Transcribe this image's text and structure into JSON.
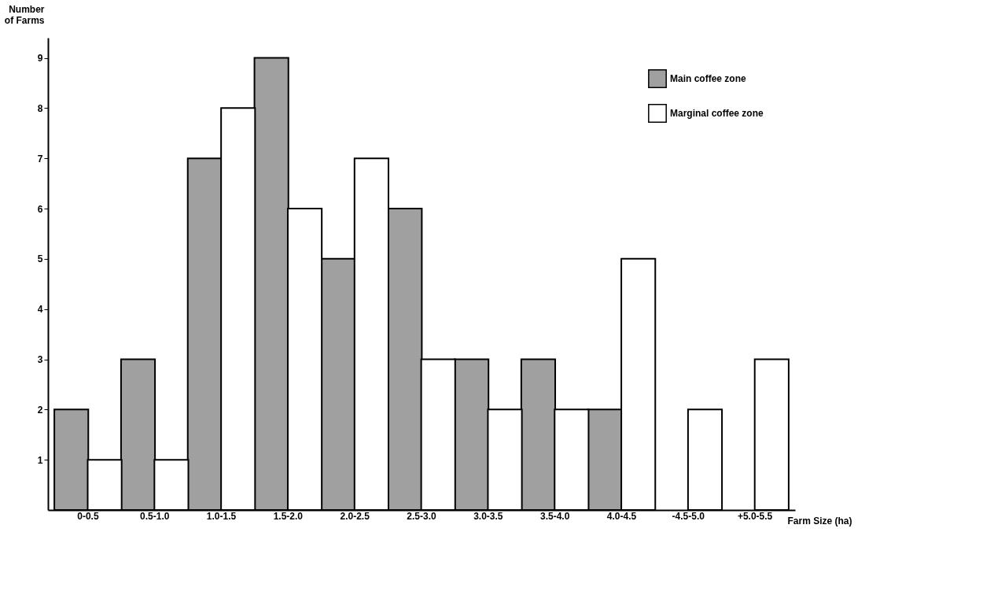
{
  "chart_data": {
    "type": "bar",
    "xlabel": "Farm Size (ha)",
    "ylabel": "Number of Farms",
    "categories": [
      "0-0.5",
      "0.5-1.0",
      "1.0-1.5",
      "1.5-2.0",
      "2.0-2.5",
      "2.5-3.0",
      "3.0-3.5",
      "3.5-4.0",
      "4.0-4.5",
      "-4.5-5.0",
      "+5.0-5.5"
    ],
    "series": [
      {
        "name": "Main coffee zone",
        "color": "#a0a0a0",
        "values": [
          2,
          3,
          7,
          9,
          5,
          6,
          3,
          3,
          2,
          null,
          null
        ]
      },
      {
        "name": "Marginal coffee zone",
        "color": "#ffffff",
        "values": [
          1,
          1,
          8,
          6,
          7,
          3,
          2,
          2,
          5,
          2,
          3
        ]
      }
    ],
    "ylim": [
      0,
      9.4
    ],
    "yticks": [
      1,
      2,
      3,
      4,
      5,
      6,
      7,
      8,
      9
    ],
    "grid": false,
    "legend": "top right"
  }
}
